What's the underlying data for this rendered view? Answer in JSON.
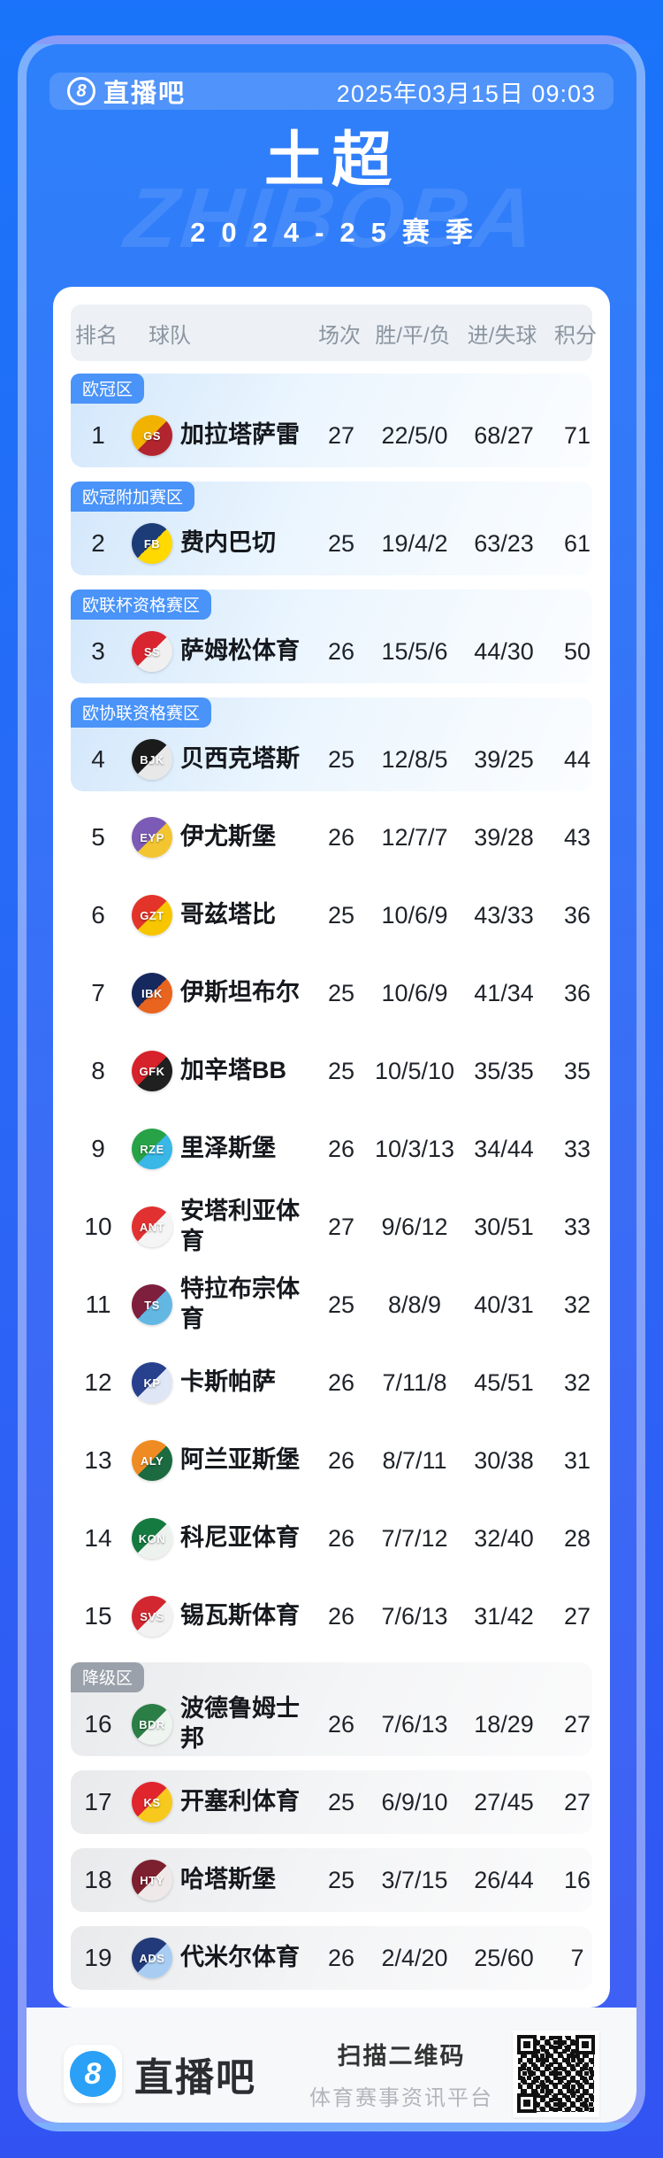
{
  "header": {
    "logo_digit": "8",
    "logo_text": "直播吧",
    "datetime": "2025年03月15日 09:03"
  },
  "title": "土超",
  "season": "2024-25赛季",
  "watermark": "ZHIBOBA",
  "colors": {
    "bg_top": "#1a74fa",
    "bg_mid": "#2b66f6",
    "bg_bottom": "#3253f2",
    "rim": "rgba(255,255,255,0.38)",
    "panel_top": "#2e80fa",
    "panel_mid": "#3a6cf6",
    "panel_bottom": "#3f5ef4",
    "zone_badge_blue": "#4a93f8",
    "zone_badge_gray": "#9aa1ab",
    "accent_blue": "#2aa0f6"
  },
  "table": {
    "columns": [
      "排名",
      "球队",
      "场次",
      "胜/平/负",
      "进/失球",
      "积分"
    ],
    "rows": [
      {
        "rank": "1",
        "team": "加拉塔萨雷",
        "played": "27",
        "wdl": "22/5/0",
        "goals": "68/27",
        "points": "71",
        "zone_label": "欧冠区",
        "zone_type": "europe",
        "logo": {
          "initials": "GS",
          "c1": "#f2b300",
          "c2": "#b3252e"
        }
      },
      {
        "rank": "2",
        "team": "费内巴切",
        "played": "25",
        "wdl": "19/4/2",
        "goals": "63/23",
        "points": "61",
        "zone_label": "欧冠附加赛区",
        "zone_type": "europe",
        "logo": {
          "initials": "FB",
          "c1": "#1c3c77",
          "c2": "#ffd900"
        }
      },
      {
        "rank": "3",
        "team": "萨姆松体育",
        "played": "26",
        "wdl": "15/5/6",
        "goals": "44/30",
        "points": "50",
        "zone_label": "欧联杯资格赛区",
        "zone_type": "europe",
        "logo": {
          "initials": "SS",
          "c1": "#d8252f",
          "c2": "#f0f0f0"
        }
      },
      {
        "rank": "4",
        "team": "贝西克塔斯",
        "played": "25",
        "wdl": "12/8/5",
        "goals": "39/25",
        "points": "44",
        "zone_label": "欧协联资格赛区",
        "zone_type": "europe",
        "logo": {
          "initials": "BJK",
          "c1": "#1b1b1b",
          "c2": "#e8e8e8"
        }
      },
      {
        "rank": "5",
        "team": "伊尤斯堡",
        "played": "26",
        "wdl": "12/7/7",
        "goals": "39/28",
        "points": "43",
        "zone_label": "",
        "zone_type": "",
        "logo": {
          "initials": "EYP",
          "c1": "#7b5bb5",
          "c2": "#f3c531"
        }
      },
      {
        "rank": "6",
        "team": "哥兹塔比",
        "played": "25",
        "wdl": "10/6/9",
        "goals": "43/33",
        "points": "36",
        "zone_label": "",
        "zone_type": "",
        "logo": {
          "initials": "GZT",
          "c1": "#e3342a",
          "c2": "#f7c600"
        }
      },
      {
        "rank": "7",
        "team": "伊斯坦布尔",
        "played": "25",
        "wdl": "10/6/9",
        "goals": "41/34",
        "points": "36",
        "zone_label": "",
        "zone_type": "",
        "logo": {
          "initials": "IBK",
          "c1": "#15295e",
          "c2": "#e8641f"
        }
      },
      {
        "rank": "8",
        "team": "加辛塔BB",
        "played": "25",
        "wdl": "10/5/10",
        "goals": "35/35",
        "points": "35",
        "zone_label": "",
        "zone_type": "",
        "logo": {
          "initials": "GFK",
          "c1": "#d6222a",
          "c2": "#202020"
        }
      },
      {
        "rank": "9",
        "team": "里泽斯堡",
        "played": "26",
        "wdl": "10/3/13",
        "goals": "34/44",
        "points": "33",
        "zone_label": "",
        "zone_type": "",
        "logo": {
          "initials": "RZE",
          "c1": "#27a247",
          "c2": "#39b7e6"
        }
      },
      {
        "rank": "10",
        "team": "安塔利亚体育",
        "played": "27",
        "wdl": "9/6/12",
        "goals": "30/51",
        "points": "33",
        "zone_label": "",
        "zone_type": "",
        "logo": {
          "initials": "ANT",
          "c1": "#e23131",
          "c2": "#f5f5f5"
        }
      },
      {
        "rank": "11",
        "team": "特拉布宗体育",
        "played": "25",
        "wdl": "8/8/9",
        "goals": "40/31",
        "points": "32",
        "zone_label": "",
        "zone_type": "",
        "logo": {
          "initials": "TS",
          "c1": "#7e1f3d",
          "c2": "#63b8e3"
        }
      },
      {
        "rank": "12",
        "team": "卡斯帕萨",
        "played": "26",
        "wdl": "7/11/8",
        "goals": "45/51",
        "points": "32",
        "zone_label": "",
        "zone_type": "",
        "logo": {
          "initials": "KP",
          "c1": "#27418f",
          "c2": "#dfe6f5"
        }
      },
      {
        "rank": "13",
        "team": "阿兰亚斯堡",
        "played": "26",
        "wdl": "8/7/11",
        "goals": "30/38",
        "points": "31",
        "zone_label": "",
        "zone_type": "",
        "logo": {
          "initials": "ALY",
          "c1": "#ef8b23",
          "c2": "#1c6b40"
        }
      },
      {
        "rank": "14",
        "team": "科尼亚体育",
        "played": "26",
        "wdl": "7/7/12",
        "goals": "32/40",
        "points": "28",
        "zone_label": "",
        "zone_type": "",
        "logo": {
          "initials": "KON",
          "c1": "#157a40",
          "c2": "#eef2ef"
        }
      },
      {
        "rank": "15",
        "team": "锡瓦斯体育",
        "played": "26",
        "wdl": "7/6/13",
        "goals": "31/42",
        "points": "27",
        "zone_label": "",
        "zone_type": "",
        "logo": {
          "initials": "SVS",
          "c1": "#d22730",
          "c2": "#f2f2f2"
        }
      },
      {
        "rank": "16",
        "team": "波德鲁姆士邦",
        "played": "26",
        "wdl": "7/6/13",
        "goals": "18/29",
        "points": "27",
        "zone_label": "降级区",
        "zone_type": "relegation",
        "logo": {
          "initials": "BDR",
          "c1": "#2a7e46",
          "c2": "#eef4ef"
        }
      },
      {
        "rank": "17",
        "team": "开塞利体育",
        "played": "25",
        "wdl": "6/9/10",
        "goals": "27/45",
        "points": "27",
        "zone_label": "",
        "zone_type": "relegation",
        "logo": {
          "initials": "KS",
          "c1": "#e0252d",
          "c2": "#f7c91e"
        }
      },
      {
        "rank": "18",
        "team": "哈塔斯堡",
        "played": "25",
        "wdl": "3/7/15",
        "goals": "26/44",
        "points": "16",
        "zone_label": "",
        "zone_type": "relegation",
        "logo": {
          "initials": "HTY",
          "c1": "#7c1f2e",
          "c2": "#efe9e9"
        }
      },
      {
        "rank": "19",
        "team": "代米尔体育",
        "played": "26",
        "wdl": "2/4/20",
        "goals": "25/60",
        "points": "7",
        "zone_label": "",
        "zone_type": "relegation",
        "logo": {
          "initials": "ADS",
          "c1": "#223a7a",
          "c2": "#a9cdf2"
        }
      }
    ]
  },
  "footer": {
    "logo_digit": "8",
    "logo_text": "直播吧",
    "scan_title": "扫描二维码",
    "scan_subtitle": "体育赛事资讯平台"
  }
}
